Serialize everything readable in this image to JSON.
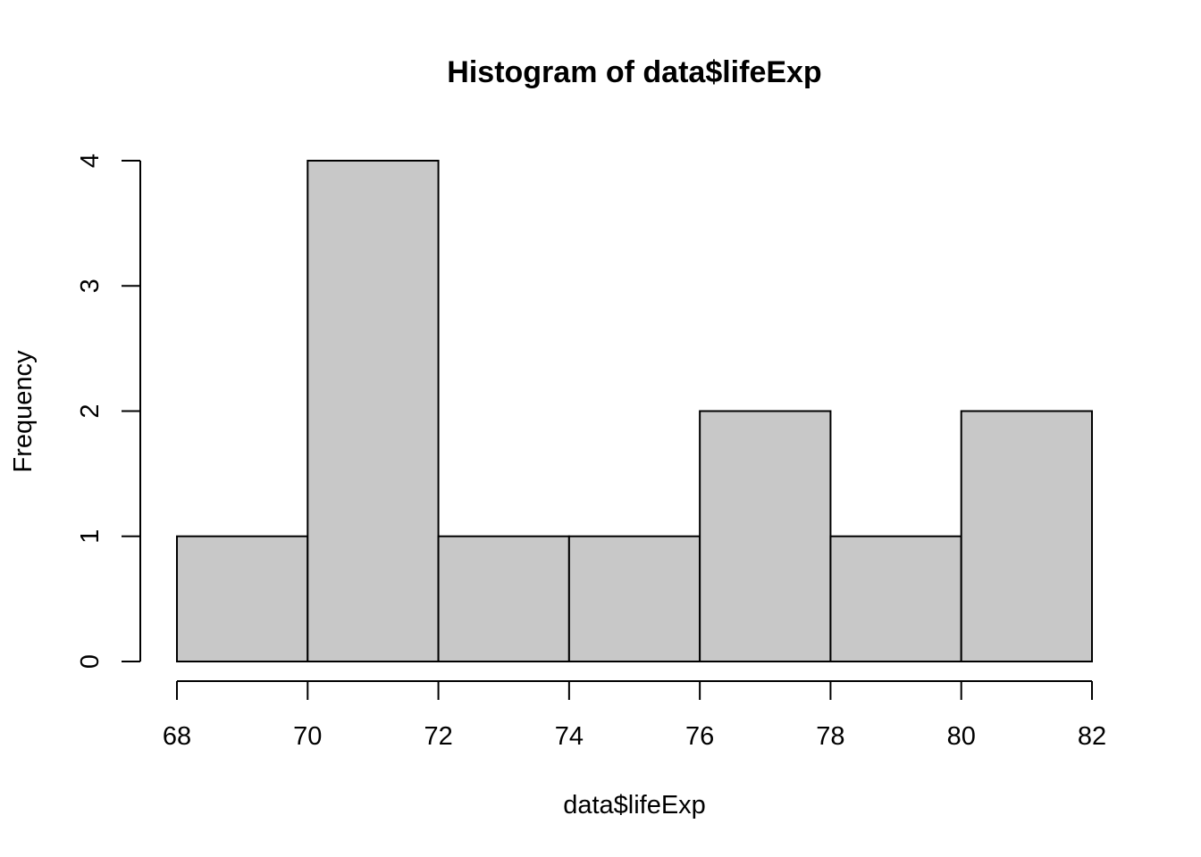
{
  "chart_data": {
    "type": "bar",
    "title": "Histogram of data$lifeExp",
    "xlabel": "data$lifeExp",
    "ylabel": "Frequency",
    "bins": [
      {
        "from": 68,
        "to": 70,
        "count": 1
      },
      {
        "from": 70,
        "to": 72,
        "count": 4
      },
      {
        "from": 72,
        "to": 74,
        "count": 1
      },
      {
        "from": 74,
        "to": 76,
        "count": 1
      },
      {
        "from": 76,
        "to": 78,
        "count": 2
      },
      {
        "from": 78,
        "to": 80,
        "count": 1
      },
      {
        "from": 80,
        "to": 82,
        "count": 2
      }
    ],
    "xlim": [
      68,
      82
    ],
    "ylim": [
      0,
      4
    ],
    "x_ticks": [
      "68",
      "70",
      "72",
      "74",
      "76",
      "78",
      "80",
      "82"
    ],
    "y_ticks": [
      "0",
      "1",
      "2",
      "3",
      "4"
    ],
    "grid": false,
    "legend": "none",
    "colors": {
      "bar_fill": "#c8c8c8",
      "bar_stroke": "#000000",
      "axis": "#000000",
      "background": "#ffffff"
    }
  }
}
